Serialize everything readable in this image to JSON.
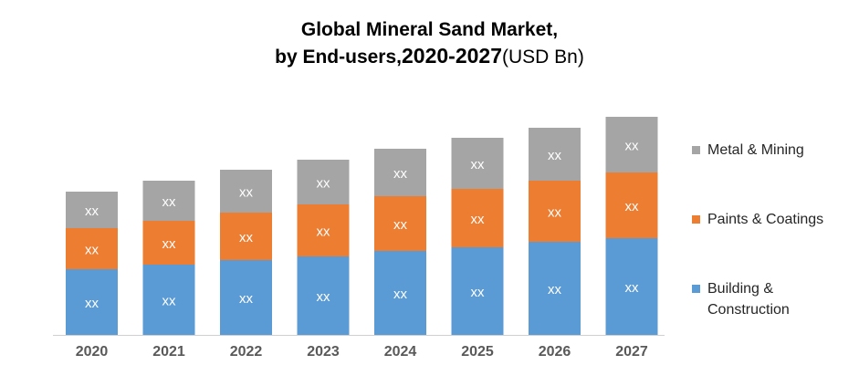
{
  "chart_data": {
    "type": "bar",
    "stacked": true,
    "title_line1": "Global Mineral Sand Market,",
    "title_line2_prefix": "by End-users,",
    "title_line2_years": "2020-2027",
    "title_line2_suffix": "(USD Bn)",
    "categories": [
      "2020",
      "2021",
      "2022",
      "2023",
      "2024",
      "2025",
      "2026",
      "2027"
    ],
    "series": [
      {
        "name": "Building & Construction",
        "name_line1": "Building &",
        "name_line2": "Construction",
        "color": "#5B9BD5",
        "values": [
          72,
          77,
          82,
          86,
          92,
          96,
          102,
          106
        ],
        "labels": [
          "xx",
          "xx",
          "xx",
          "xx",
          "xx",
          "xx",
          "xx",
          "xx"
        ]
      },
      {
        "name": "Paints & Coatings",
        "color": "#ED7D31",
        "values": [
          45,
          48,
          52,
          57,
          60,
          64,
          67,
          72
        ],
        "labels": [
          "xx",
          "xx",
          "xx",
          "xx",
          "xx",
          "xx",
          "xx",
          "xx"
        ]
      },
      {
        "name": "Metal & Mining",
        "color": "#A5A5A5",
        "values": [
          40,
          44,
          47,
          49,
          52,
          56,
          58,
          61
        ],
        "labels": [
          "xx",
          "xx",
          "xx",
          "xx",
          "xx",
          "xx",
          "xx",
          "xx"
        ]
      }
    ],
    "data_labels_note": "values estimated; data labels print xx",
    "legend_position": "right",
    "grid": false,
    "y_axis_shown": false
  }
}
